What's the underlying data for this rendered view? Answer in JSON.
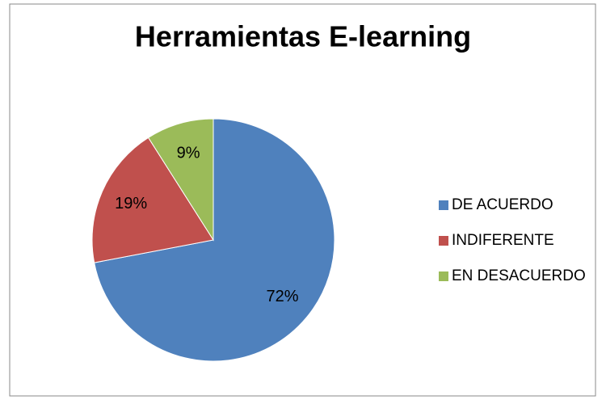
{
  "chart_data": {
    "type": "pie",
    "title": "Herramientas E-learning",
    "categories": [
      "DE ACUERDO",
      "INDIFERENTE",
      "EN DESACUERDO"
    ],
    "values": [
      72,
      19,
      9
    ],
    "value_labels": [
      "72%",
      "19%",
      "9%"
    ],
    "colors": [
      "#4f81bd",
      "#c0504d",
      "#9bbb59"
    ],
    "legend": "right"
  }
}
